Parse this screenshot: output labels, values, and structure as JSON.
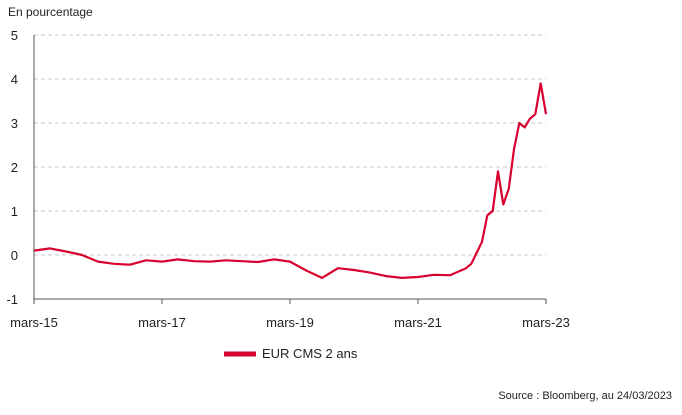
{
  "chart_data": {
    "type": "line",
    "ylabel": "En pourcentage",
    "ylim": [
      -1,
      5
    ],
    "y_ticks": [
      "5",
      "4",
      "3",
      "2",
      "1",
      "0",
      "-1"
    ],
    "x_ticks": [
      "mars-15",
      "mars-17",
      "mars-19",
      "mars-21",
      "mars-23"
    ],
    "grid": "horizontal dashed",
    "legend_position": "bottom-left",
    "source": "Source : Bloomberg, au 24/03/2023",
    "colors": {
      "series": "#d7002f",
      "grid": "#c8c8c8",
      "axis": "#555555"
    },
    "series": [
      {
        "name": "EUR CMS 2 ans",
        "x": [
          "2015-03",
          "2015-06",
          "2015-09",
          "2015-12",
          "2016-03",
          "2016-06",
          "2016-09",
          "2016-12",
          "2017-03",
          "2017-06",
          "2017-09",
          "2017-12",
          "2018-03",
          "2018-06",
          "2018-09",
          "2018-12",
          "2019-03",
          "2019-06",
          "2019-09",
          "2019-12",
          "2020-03",
          "2020-06",
          "2020-09",
          "2020-12",
          "2021-03",
          "2021-06",
          "2021-09",
          "2021-12",
          "2022-01",
          "2022-03",
          "2022-04",
          "2022-05",
          "2022-06",
          "2022-07",
          "2022-08",
          "2022-09",
          "2022-10",
          "2022-11",
          "2022-12",
          "2023-01",
          "2023-02",
          "2023-03"
        ],
        "values": [
          0.1,
          0.15,
          0.08,
          0.0,
          -0.15,
          -0.2,
          -0.22,
          -0.12,
          -0.15,
          -0.1,
          -0.14,
          -0.15,
          -0.12,
          -0.14,
          -0.16,
          -0.1,
          -0.15,
          -0.35,
          -0.52,
          -0.3,
          -0.34,
          -0.4,
          -0.48,
          -0.52,
          -0.5,
          -0.45,
          -0.46,
          -0.3,
          -0.2,
          0.3,
          0.9,
          1.0,
          1.9,
          1.15,
          1.5,
          2.4,
          3.0,
          2.9,
          3.1,
          3.2,
          3.9,
          3.2
        ]
      }
    ]
  }
}
